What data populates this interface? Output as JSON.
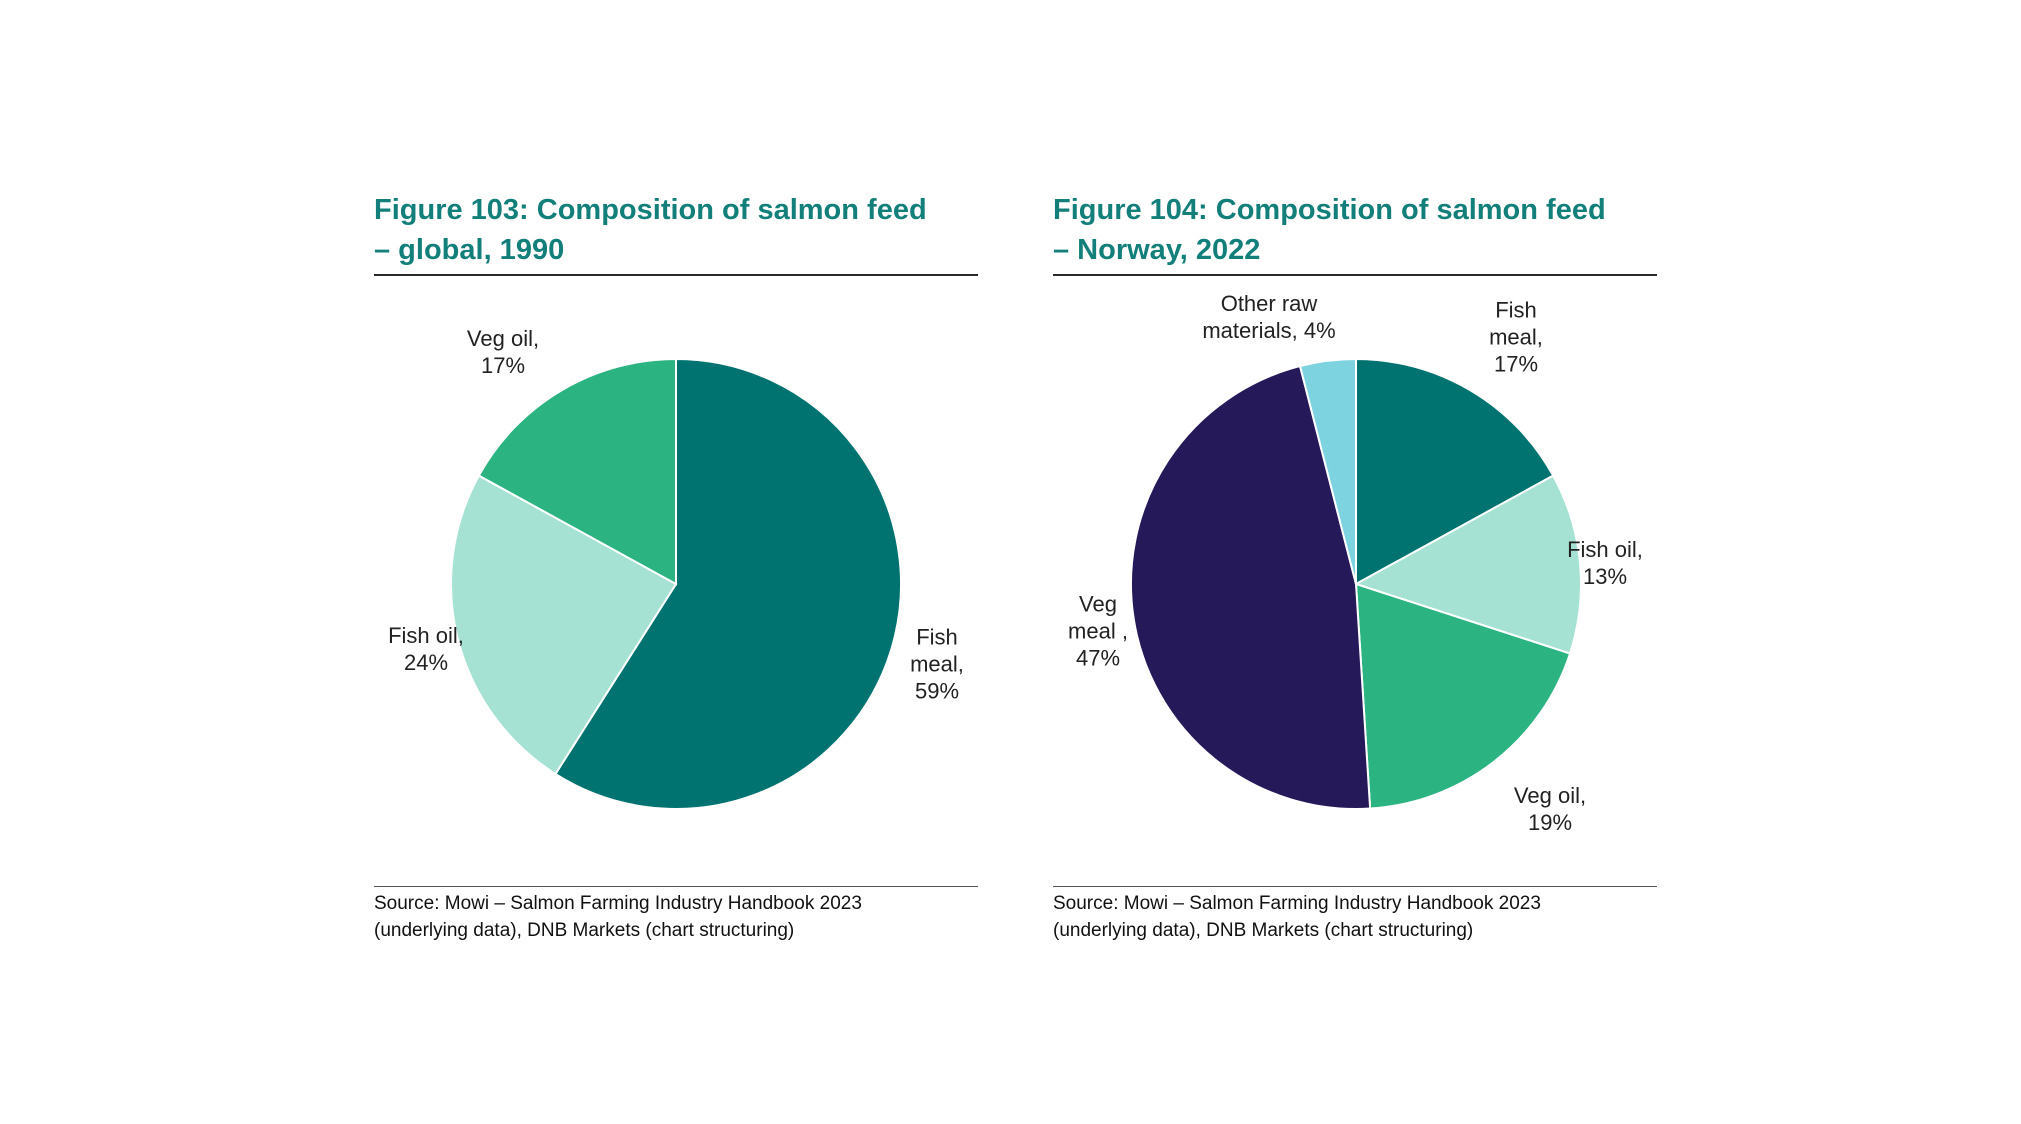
{
  "chart_data": [
    {
      "type": "pie",
      "title_line1": "Figure 103: Composition of salmon feed",
      "title_line2": "– global, 1990",
      "slices": [
        {
          "name_line1": "Fish",
          "name_line2": "meal,",
          "pct": "59%",
          "value": 59,
          "color": "#007370"
        },
        {
          "name_line1": "Fish oil,",
          "name_line2": "",
          "pct": "24%",
          "value": 24,
          "color": "#a5e2d3"
        },
        {
          "name_line1": "Veg oil,",
          "name_line2": "",
          "pct": "17%",
          "value": 17,
          "color": "#2bb382"
        }
      ],
      "source_line1": "Source: Mowi – Salmon Farming Industry Handbook 2023",
      "source_line2": "(underlying data), DNB Markets (chart structuring)"
    },
    {
      "type": "pie",
      "title_line1": "Figure 104: Composition of salmon feed",
      "title_line2": "– Norway, 2022",
      "slices": [
        {
          "name_line1": "Fish",
          "name_line2": "meal,",
          "pct": "17%",
          "value": 17,
          "color": "#007370"
        },
        {
          "name_line1": "Fish oil,",
          "name_line2": "",
          "pct": "13%",
          "value": 13,
          "color": "#a5e2d3"
        },
        {
          "name_line1": "Veg oil,",
          "name_line2": "",
          "pct": "19%",
          "value": 19,
          "color": "#2bb382"
        },
        {
          "name_line1": "Veg",
          "name_line2": "meal ,",
          "pct": "47%",
          "value": 47,
          "color": "#25195a"
        },
        {
          "name_line1": "Other raw",
          "name_line2": "materials,",
          "pct": "4%",
          "value": 4,
          "color": "#7dd3e0"
        }
      ],
      "source_line1": "Source: Mowi – Salmon Farming Industry Handbook 2023",
      "source_line2": "(underlying data), DNB Markets (chart structuring)"
    }
  ]
}
